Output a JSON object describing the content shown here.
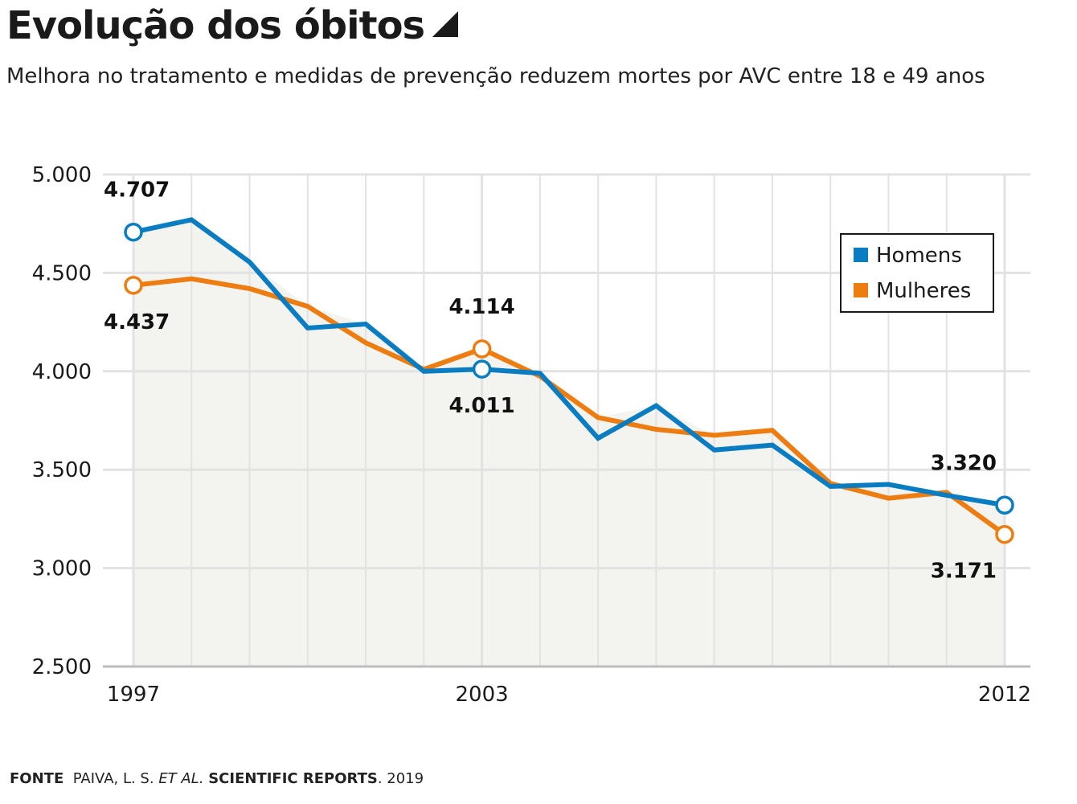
{
  "header": {
    "title": "Evolução dos óbitos",
    "subtitle": "Melhora no tratamento e medidas de prevenção reduzem mortes por AVC entre 18 e 49 anos"
  },
  "footer": {
    "label": "FONTE",
    "authors": "PAIVA, L. S.",
    "etal": "ET AL.",
    "journal": "SCIENTIFIC REPORTS",
    "year": ". 2019"
  },
  "colors": {
    "homens": "#0a7dc2",
    "mulheres": "#ee7d11",
    "grid": "#e2e2e2",
    "area": "#f3f4ef"
  },
  "chart_data": {
    "type": "line",
    "title": "Evolução dos óbitos",
    "x": [
      1997,
      1998,
      1999,
      2000,
      2001,
      2002,
      2003,
      2004,
      2005,
      2006,
      2007,
      2008,
      2009,
      2010,
      2011,
      2012
    ],
    "x_tick_labels": [
      {
        "x": 1997,
        "label": "1997"
      },
      {
        "x": 2003,
        "label": "2003"
      },
      {
        "x": 2012,
        "label": "2012"
      }
    ],
    "ylim": [
      2500,
      5000
    ],
    "y_ticks": [
      {
        "value": 2500,
        "label": "2.500"
      },
      {
        "value": 3000,
        "label": "3.000"
      },
      {
        "value": 3500,
        "label": "3.500"
      },
      {
        "value": 4000,
        "label": "4.000"
      },
      {
        "value": 4500,
        "label": "4.500"
      },
      {
        "value": 5000,
        "label": "5.000"
      }
    ],
    "grid": true,
    "legend_position": "top-right",
    "series": [
      {
        "name": "Homens",
        "values": [
          4707,
          4770,
          4555,
          4220,
          4240,
          4000,
          4011,
          3990,
          3660,
          3825,
          3600,
          3625,
          3415,
          3425,
          3370,
          3320
        ]
      },
      {
        "name": "Mulheres",
        "values": [
          4437,
          4470,
          4420,
          4330,
          4145,
          4010,
          4114,
          3975,
          3765,
          3705,
          3675,
          3700,
          3430,
          3355,
          3385,
          3171
        ]
      }
    ],
    "annotations": [
      {
        "series": "Homens",
        "x": 1997,
        "label": "4.707",
        "position": "above"
      },
      {
        "series": "Mulheres",
        "x": 1997,
        "label": "4.437",
        "position": "below"
      },
      {
        "series": "Mulheres",
        "x": 2003,
        "label": "4.114",
        "position": "above"
      },
      {
        "series": "Homens",
        "x": 2003,
        "label": "4.011",
        "position": "below"
      },
      {
        "series": "Homens",
        "x": 2012,
        "label": "3.320",
        "position": "above"
      },
      {
        "series": "Mulheres",
        "x": 2012,
        "label": "3.171",
        "position": "below"
      }
    ]
  }
}
